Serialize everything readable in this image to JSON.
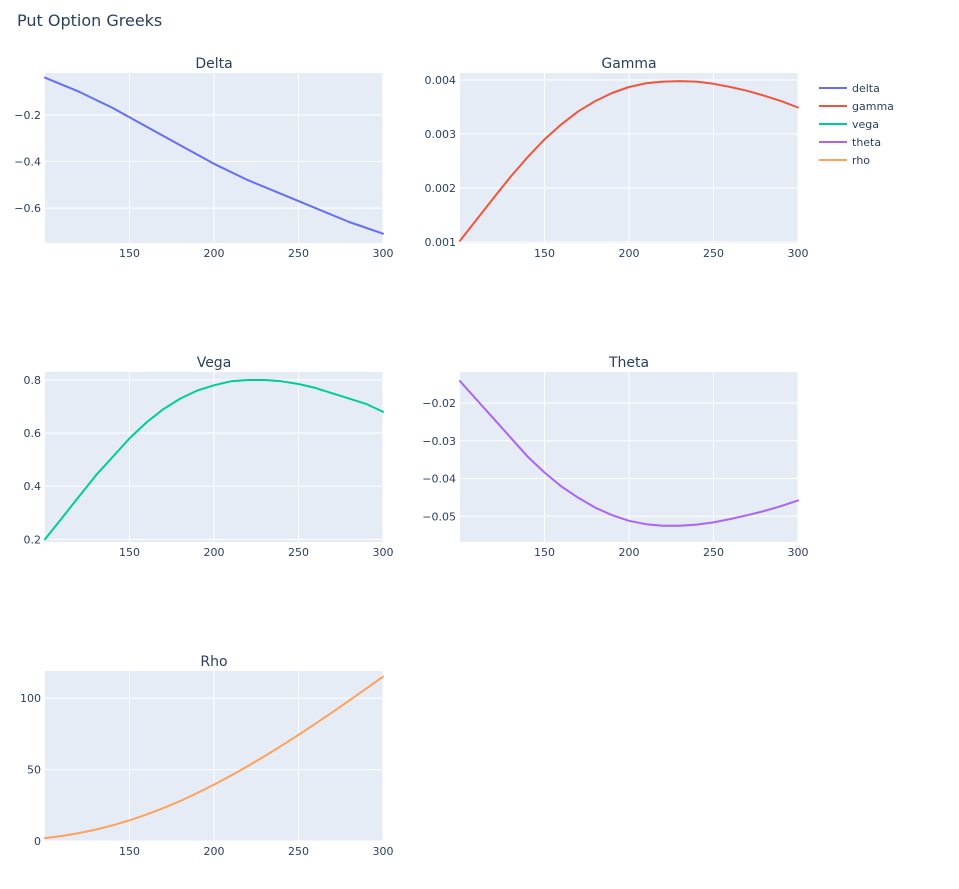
{
  "title": "Put Option Greeks",
  "chart_data": [
    {
      "type": "line",
      "title": "Delta",
      "series": [
        {
          "name": "delta",
          "color": "#636EFA",
          "x": [
            100,
            120,
            140,
            160,
            180,
            200,
            220,
            240,
            260,
            280,
            300
          ],
          "y": [
            -0.04,
            -0.1,
            -0.17,
            -0.25,
            -0.33,
            -0.41,
            -0.48,
            -0.54,
            -0.6,
            -0.66,
            -0.71
          ]
        }
      ],
      "xlim": [
        100,
        300
      ],
      "ylim": [
        -0.75,
        -0.02
      ],
      "xticks": [
        150,
        200,
        250,
        300
      ],
      "xtick_labels": [
        "150",
        "200",
        "250",
        "300"
      ],
      "yticks": [
        -0.2,
        -0.4,
        -0.6
      ],
      "ytick_labels": [
        "−0.2",
        "−0.4",
        "−0.6"
      ],
      "grid": true
    },
    {
      "type": "line",
      "title": "Gamma",
      "series": [
        {
          "name": "gamma",
          "color": "#EF553B",
          "x": [
            100,
            110,
            120,
            130,
            140,
            150,
            160,
            170,
            180,
            190,
            200,
            210,
            220,
            230,
            240,
            250,
            260,
            270,
            280,
            290,
            300
          ],
          "y": [
            0.00102,
            0.00142,
            0.00182,
            0.00221,
            0.00257,
            0.0029,
            0.00318,
            0.00342,
            0.00361,
            0.00376,
            0.00387,
            0.00394,
            0.00397,
            0.00398,
            0.00397,
            0.00393,
            0.00387,
            0.0038,
            0.00371,
            0.00361,
            0.00349
          ]
        }
      ],
      "xlim": [
        100,
        300
      ],
      "ylim": [
        0.00098,
        0.00413
      ],
      "xticks": [
        150,
        200,
        250,
        300
      ],
      "xtick_labels": [
        "150",
        "200",
        "250",
        "300"
      ],
      "yticks": [
        0.001,
        0.002,
        0.003,
        0.004
      ],
      "ytick_labels": [
        "0.001",
        "0.002",
        "0.003",
        "0.004"
      ],
      "grid": true
    },
    {
      "type": "line",
      "title": "Vega",
      "series": [
        {
          "name": "vega",
          "color": "#00CC96",
          "x": [
            100,
            110,
            120,
            130,
            140,
            150,
            160,
            170,
            180,
            190,
            200,
            210,
            220,
            230,
            240,
            250,
            260,
            270,
            280,
            290,
            300
          ],
          "y": [
            0.2,
            0.28,
            0.36,
            0.44,
            0.51,
            0.58,
            0.64,
            0.69,
            0.73,
            0.76,
            0.78,
            0.795,
            0.8,
            0.8,
            0.795,
            0.785,
            0.77,
            0.75,
            0.73,
            0.71,
            0.68
          ]
        }
      ],
      "xlim": [
        100,
        300
      ],
      "ylim": [
        0.19,
        0.83
      ],
      "xticks": [
        150,
        200,
        250,
        300
      ],
      "xtick_labels": [
        "150",
        "200",
        "250",
        "300"
      ],
      "yticks": [
        0.2,
        0.4,
        0.6,
        0.8
      ],
      "ytick_labels": [
        "0.2",
        "0.4",
        "0.6",
        "0.8"
      ],
      "grid": true
    },
    {
      "type": "line",
      "title": "Theta",
      "series": [
        {
          "name": "theta",
          "color": "#AB63FA",
          "x": [
            100,
            110,
            120,
            130,
            140,
            150,
            160,
            170,
            180,
            190,
            200,
            210,
            220,
            230,
            240,
            250,
            260,
            270,
            280,
            290,
            300
          ],
          "y": [
            -0.0142,
            -0.0192,
            -0.0242,
            -0.0292,
            -0.0342,
            -0.0384,
            -0.0421,
            -0.0451,
            -0.0477,
            -0.0497,
            -0.0512,
            -0.0521,
            -0.0525,
            -0.0525,
            -0.0522,
            -0.0516,
            -0.0507,
            -0.0497,
            -0.0486,
            -0.0473,
            -0.0458
          ]
        }
      ],
      "xlim": [
        100,
        300
      ],
      "ylim": [
        -0.0568,
        -0.0118
      ],
      "xticks": [
        150,
        200,
        250,
        300
      ],
      "xtick_labels": [
        "150",
        "200",
        "250",
        "300"
      ],
      "yticks": [
        -0.02,
        -0.03,
        -0.04,
        -0.05
      ],
      "ytick_labels": [
        "−0.02",
        "−0.03",
        "−0.04",
        "−0.05"
      ],
      "grid": true
    },
    {
      "type": "line",
      "title": "Rho",
      "series": [
        {
          "name": "rho",
          "color": "#FFA15A",
          "x": [
            100,
            110,
            120,
            130,
            140,
            150,
            160,
            170,
            180,
            190,
            200,
            210,
            220,
            230,
            240,
            250,
            260,
            270,
            280,
            290,
            300
          ],
          "y": [
            2.0,
            3.5,
            5.5,
            8.0,
            11.0,
            14.5,
            18.5,
            23.0,
            28.0,
            33.5,
            39.5,
            45.8,
            52.4,
            59.4,
            66.7,
            74.3,
            82.1,
            90.1,
            98.3,
            106.6,
            115.0
          ]
        }
      ],
      "xlim": [
        100,
        300
      ],
      "ylim": [
        0,
        119
      ],
      "xticks": [
        150,
        200,
        250,
        300
      ],
      "xtick_labels": [
        "150",
        "200",
        "250",
        "300"
      ],
      "yticks": [
        0,
        50,
        100
      ],
      "ytick_labels": [
        "0",
        "50",
        "100"
      ],
      "grid": true
    }
  ],
  "legend": {
    "placement": "top-right",
    "entries": [
      {
        "label": "delta",
        "color": "#636EFA"
      },
      {
        "label": "gamma",
        "color": "#EF553B"
      },
      {
        "label": "vega",
        "color": "#00CC96"
      },
      {
        "label": "theta",
        "color": "#AB63FA"
      },
      {
        "label": "rho",
        "color": "#FFA15A"
      }
    ]
  }
}
